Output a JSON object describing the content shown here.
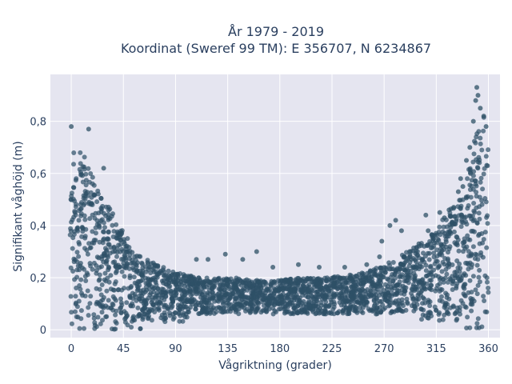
{
  "chart_data": {
    "type": "scatter",
    "title_lines": [
      "År 1979 - 2019",
      "Koordinat (Sweref 99 TM): E 356707, N 6234867"
    ],
    "xlabel": "Vågriktning (grader)",
    "ylabel": "Signifikant våghöjd (m)",
    "xlim": [
      -18,
      370
    ],
    "ylim": [
      -0.03,
      0.98
    ],
    "xticks": [
      0,
      45,
      90,
      135,
      180,
      225,
      270,
      315,
      360
    ],
    "xtick_labels": [
      "0",
      "45",
      "90",
      "135",
      "180",
      "225",
      "270",
      "315",
      "360"
    ],
    "yticks": [
      0,
      0.2,
      0.4,
      0.6,
      0.8
    ],
    "ytick_labels": [
      "0",
      "0,2",
      "0,4",
      "0,6",
      "0,8"
    ],
    "grid": true,
    "legend": "none",
    "colors": {
      "marker": "#2e5066",
      "plot_bg": "#e5e5f0",
      "grid": "#ffffff",
      "text": "#2a3f5f"
    },
    "upper_envelope": {
      "x": [
        -1,
        0,
        5,
        10,
        15,
        20,
        25,
        30,
        35,
        40,
        45,
        50,
        55,
        60,
        70,
        80,
        90,
        100,
        120,
        140,
        160,
        180,
        200,
        220,
        240,
        260,
        270,
        280,
        290,
        300,
        310,
        320,
        330,
        340,
        345,
        350,
        355,
        358,
        360
      ],
      "y": [
        0.7,
        0.72,
        0.7,
        0.68,
        0.62,
        0.58,
        0.52,
        0.5,
        0.46,
        0.42,
        0.38,
        0.34,
        0.3,
        0.28,
        0.26,
        0.24,
        0.22,
        0.21,
        0.2,
        0.2,
        0.19,
        0.19,
        0.2,
        0.2,
        0.21,
        0.23,
        0.25,
        0.27,
        0.3,
        0.33,
        0.36,
        0.42,
        0.48,
        0.56,
        0.66,
        0.78,
        0.86,
        0.8,
        0.72
      ]
    },
    "outliers": [
      {
        "x": 0,
        "y": 0.78
      },
      {
        "x": 15,
        "y": 0.77
      },
      {
        "x": 28,
        "y": 0.62
      },
      {
        "x": 108,
        "y": 0.27
      },
      {
        "x": 118,
        "y": 0.27
      },
      {
        "x": 133,
        "y": 0.29
      },
      {
        "x": 148,
        "y": 0.27
      },
      {
        "x": 160,
        "y": 0.3
      },
      {
        "x": 174,
        "y": 0.24
      },
      {
        "x": 196,
        "y": 0.25
      },
      {
        "x": 214,
        "y": 0.24
      },
      {
        "x": 236,
        "y": 0.24
      },
      {
        "x": 255,
        "y": 0.25
      },
      {
        "x": 266,
        "y": 0.28
      },
      {
        "x": 268,
        "y": 0.34
      },
      {
        "x": 275,
        "y": 0.4
      },
      {
        "x": 280,
        "y": 0.42
      },
      {
        "x": 285,
        "y": 0.38
      },
      {
        "x": 292,
        "y": 0.3
      },
      {
        "x": 300,
        "y": 0.33
      },
      {
        "x": 306,
        "y": 0.44
      },
      {
        "x": 308,
        "y": 0.38
      },
      {
        "x": 318,
        "y": 0.45
      },
      {
        "x": 322,
        "y": 0.43
      },
      {
        "x": 326,
        "y": 0.46
      },
      {
        "x": 330,
        "y": 0.47
      },
      {
        "x": 334,
        "y": 0.53
      },
      {
        "x": 336,
        "y": 0.58
      },
      {
        "x": 338,
        "y": 0.55
      },
      {
        "x": 341,
        "y": 0.65
      },
      {
        "x": 344,
        "y": 0.7
      },
      {
        "x": 347,
        "y": 0.8
      },
      {
        "x": 349,
        "y": 0.88
      },
      {
        "x": 350,
        "y": 0.93
      },
      {
        "x": 351,
        "y": 0.9
      },
      {
        "x": 353,
        "y": 0.85
      },
      {
        "x": 356,
        "y": 0.82
      },
      {
        "x": 358,
        "y": 0.78
      }
    ]
  }
}
